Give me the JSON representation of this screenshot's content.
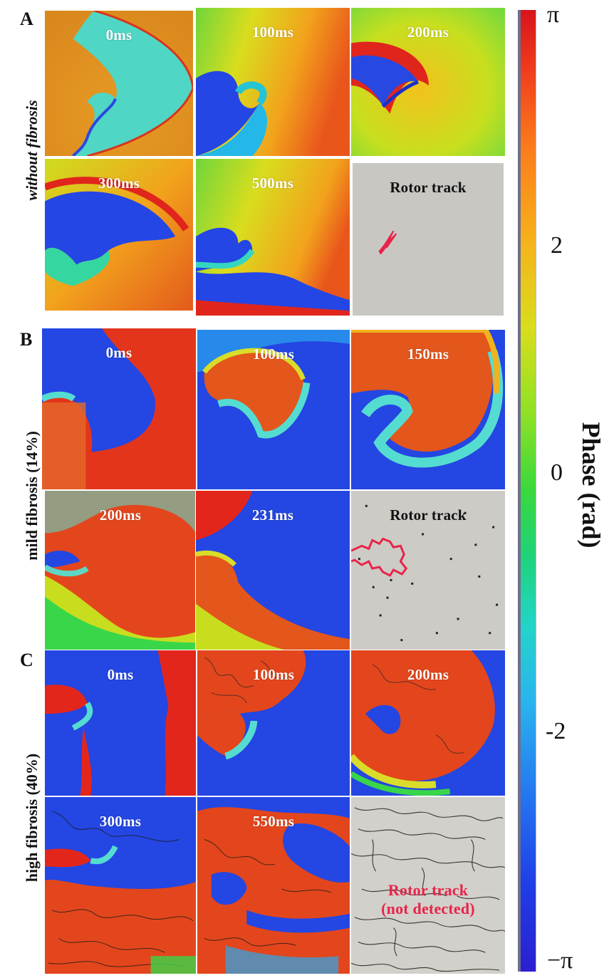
{
  "panels": [
    {
      "letter": "A",
      "row_label": "without fibrosis",
      "tiles": [
        "0ms",
        "100ms",
        "200ms",
        "300ms",
        "500ms",
        "Rotor track"
      ]
    },
    {
      "letter": "B",
      "row_label": "mild fibrosis (14%)",
      "tiles": [
        "0ms",
        "100ms",
        "150ms",
        "200ms",
        "231ms",
        "Rotor track"
      ]
    },
    {
      "letter": "C",
      "row_label": "high fibrosis (40%)",
      "tiles": [
        "0ms",
        "100ms",
        "200ms",
        "300ms",
        "550ms",
        "Rotor track\n(not detected)"
      ]
    }
  ],
  "colorbar": {
    "title": "Phase (rad)",
    "ticks": [
      "π",
      "2",
      "0",
      "-2",
      "−π"
    ]
  },
  "colors": {
    "red": "#e3231c",
    "orange": "#f08a1c",
    "yellow": "#d6df1f",
    "green": "#3fd44a",
    "cyan": "#35d7cf",
    "blue": "#1f3fe6",
    "gray": "#c9c7c1",
    "track_red": "#e8234a"
  }
}
